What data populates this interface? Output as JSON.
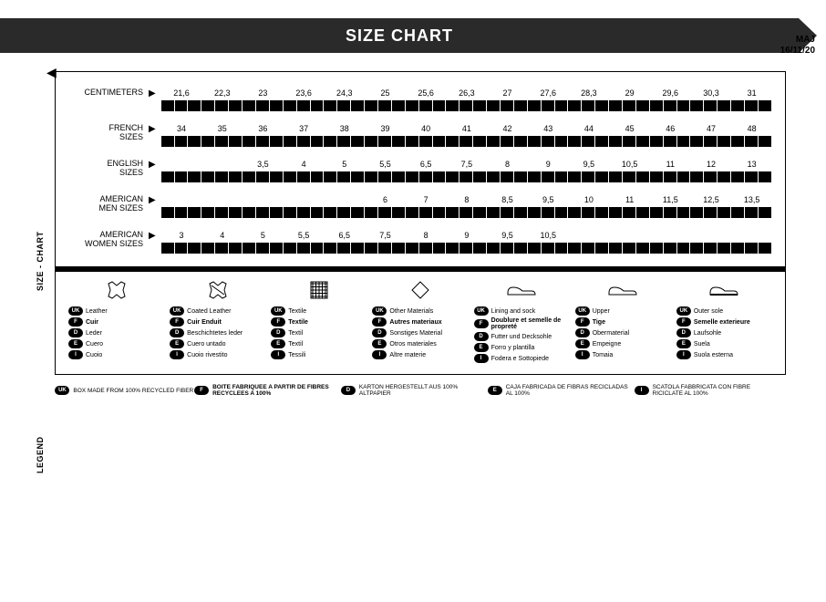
{
  "header": {
    "title": "SIZE CHART",
    "date_label": "MAJ",
    "date_value": "16/11/20"
  },
  "vlabels": {
    "size_chart": "SIZE - CHART",
    "legend": "LEGEND"
  },
  "rows": [
    {
      "label": "CENTIMETERS",
      "values": [
        "21,6",
        "22,3",
        "23",
        "23,6",
        "24,3",
        "25",
        "25,6",
        "26,3",
        "27",
        "27,6",
        "28,3",
        "29",
        "29,6",
        "30,3",
        "31"
      ],
      "offset": 0
    },
    {
      "label": "FRENCH\nSIZES",
      "values": [
        "34",
        "35",
        "36",
        "37",
        "38",
        "39",
        "40",
        "41",
        "42",
        "43",
        "44",
        "45",
        "46",
        "47",
        "48"
      ],
      "offset": 0
    },
    {
      "label": "ENGLISH\nSIZES",
      "values": [
        "3,5",
        "4",
        "5",
        "5,5",
        "6,5",
        "7,5",
        "8",
        "9",
        "9,5",
        "10,5",
        "11",
        "12",
        "13"
      ],
      "offset": 2
    },
    {
      "label": "AMERICAN\nMEN SIZES",
      "values": [
        "6",
        "7",
        "8",
        "8,5",
        "9,5",
        "10",
        "11",
        "11,5",
        "12,5",
        "13,5"
      ],
      "offset": 5
    },
    {
      "label": "AMERICAN\nWOMEN SIZES",
      "values": [
        "3",
        "4",
        "5",
        "5,5",
        "6,5",
        "7,5",
        "8",
        "9",
        "9,5",
        "10,5"
      ],
      "offset": 0
    }
  ],
  "ruler": {
    "total_slots": 15,
    "minor_per_major": 2
  },
  "legend": {
    "langs": [
      "UK",
      "F",
      "D",
      "E",
      "I"
    ],
    "bold_lang": "F",
    "cols": [
      {
        "icon": "hide1",
        "terms": [
          "Leather",
          "Cuir",
          "Leder",
          "Cuero",
          "Cuoio"
        ]
      },
      {
        "icon": "hide2",
        "terms": [
          "Coated Leather",
          "Cuir Enduit",
          "Beschichtetes leder",
          "Cuero untado",
          "Cuoio rivestito"
        ]
      },
      {
        "icon": "textile",
        "terms": [
          "Textile",
          "Textile",
          "Textil",
          "Textil",
          "Tessili"
        ]
      },
      {
        "icon": "diamond",
        "terms": [
          "Other Materials",
          "Autres materiaux",
          "Sonstiges Material",
          "Otros materiales",
          "Altre materie"
        ]
      },
      {
        "icon": "shoe1",
        "terms": [
          "Lining and sock",
          "Doublure et semelle de propreté",
          "Futter und Decksohle",
          "Forro y plantilla",
          "Fodera e Sottopiede"
        ]
      },
      {
        "icon": "shoe2",
        "terms": [
          "Upper",
          "Tige",
          "Obermaterial",
          "Empeigne",
          "Tomaia"
        ]
      },
      {
        "icon": "shoe3",
        "terms": [
          "Outer sole",
          "Semelle exterieure",
          "Laufsohle",
          "Suela",
          "Suola esterna"
        ]
      }
    ]
  },
  "footer": [
    {
      "lang": "UK",
      "text": "BOX MADE FROM 100% RECYCLED FIBER"
    },
    {
      "lang": "F",
      "text": "BOITE FABRIQUEE A PARTIR DE FIBRES RECYCLEES A 100%"
    },
    {
      "lang": "D",
      "text": "KARTON HERGESTELLT AUS 100% ALTPAPIER"
    },
    {
      "lang": "E",
      "text": "CAJA FABRICADA DE FIBRAS RECICLADAS AL 100%"
    },
    {
      "lang": "I",
      "text": "SCATOLA FABBRICATA CON FIBRE RICICLATE AL 100%"
    }
  ],
  "colors": {
    "bar": "#2a2a2a",
    "black": "#000",
    "white": "#fff"
  }
}
